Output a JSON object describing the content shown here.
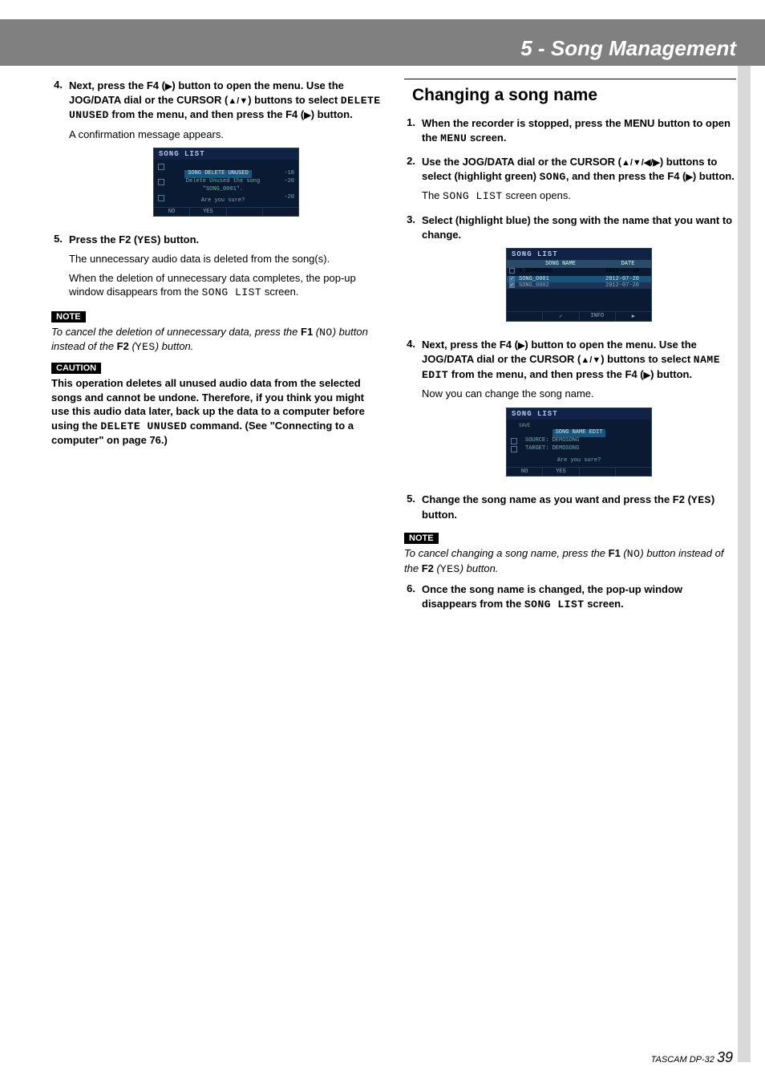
{
  "header": {
    "title": "5 - Song Management"
  },
  "left": {
    "step4": {
      "num": "4.",
      "b1": "Next, press the F4 (",
      "b2": ") button to open the menu. Use the JOG/DATA dial or the CURSOR (",
      "b3": ") buttons to select ",
      "mono": "DELETE UNUSED",
      "b4": " from the menu, and then press the F4 (",
      "b5": ") button.",
      "plain": "A confirmation message appears."
    },
    "lcd1": {
      "title": "SONG LIST",
      "highlight": "SONG DELETE UNUSED",
      "r1": "-18",
      "msg1": "Delete Unused the song",
      "msg2": "\"SONG_0001\".",
      "r2": "-20",
      "r3": "-20",
      "msg3": "Are you sure?",
      "f1": "NO",
      "f2": "YES",
      "f3": "",
      "f4": ""
    },
    "step5": {
      "num": "5.",
      "b1": "Press the F2 (",
      "mono": "YES",
      "b2": ") button.",
      "p1": "The unnecessary audio data is deleted from the song(s).",
      "p2a": "When the deletion of unnecessary data completes, the pop-up window disappears from the ",
      "p2mono": "SONG LIST",
      "p2b": " screen."
    },
    "note": {
      "label": "NOTE",
      "t1": "To cancel the deletion of unnecessary data, press the ",
      "bF1": "F1",
      "t2": " (",
      "mono1": "NO",
      "t3": ") button instead of the ",
      "bF2": "F2",
      "t4": " (",
      "mono2": "YES",
      "t5": ") button."
    },
    "caution": {
      "label": "CAUTION",
      "t1": "This operation deletes all unused audio data from the selected songs and cannot be undone. Therefore, if you think you might use this audio data later, back up the data to a computer before using the ",
      "mono": "DELETE UNUSED",
      "t2": " command. (See \"Connecting to a computer\" on page 76.)"
    }
  },
  "right": {
    "h2": "Changing a song name",
    "step1": {
      "num": "1.",
      "b1": "When the recorder is stopped, press the MENU button to open the ",
      "mono": "MENU",
      "b2": " screen."
    },
    "step2": {
      "num": "2.",
      "b1": "Use the JOG/DATA dial or the CURSOR (",
      "b2": ") buttons to select (highlight green) ",
      "mono": "SONG",
      "b3": ", and then press the F4 (",
      "b4": ") button.",
      "p1a": "The ",
      "p1mono": "SONG LIST",
      "p1b": " screen opens."
    },
    "step3": {
      "num": "3.",
      "b1": "Select (highlight blue) the song with the name that you want to change."
    },
    "lcd2": {
      "title": "SONG LIST",
      "col1": "SONG NAME",
      "col2": "DATE",
      "rows": [
        {
          "chk": "unchecked",
          "dot": true,
          "name": "DEMOSONG",
          "date": "2012-07-18",
          "cls": ""
        },
        {
          "chk": "checked",
          "dot": false,
          "name": "SONG_0001",
          "date": "2012-07-20",
          "cls": "sel"
        },
        {
          "chk": "checked",
          "dot": false,
          "name": "SONG_0002",
          "date": "2012-07-20",
          "cls": "dim"
        }
      ],
      "f1": "",
      "f2": "✓",
      "f3": "INFO",
      "f4": "▶"
    },
    "step4": {
      "num": "4.",
      "b1": "Next, press the F4 (",
      "b2": ") button to open the menu. Use the JOG/DATA dial or the CURSOR (",
      "b3": ") buttons to select ",
      "mono": "NAME EDIT",
      "b4": " from the menu, and then press the F4 (",
      "b5": ") button.",
      "plain": "Now you can change the song name."
    },
    "lcd3": {
      "title": "SONG LIST",
      "sub": "SONG NAME EDIT",
      "l1": "SOURCE: DEMOSONG",
      "l2": "TARGET: DEMOSONG",
      "l3": "Are you sure?",
      "f1": "NO",
      "f2": "YES",
      "f3": "",
      "f4": ""
    },
    "step5": {
      "num": "5.",
      "b1": "Change the song name as you want and press the F2 (",
      "mono": "YES",
      "b2": ") button."
    },
    "note": {
      "label": "NOTE",
      "t1": "To cancel changing a song name, press the ",
      "bF1": "F1",
      "t2": " (",
      "mono1": "NO",
      "t3": ") button instead of the ",
      "bF2": "F2",
      "t4": " (",
      "mono2": "YES",
      "t5": ") button."
    },
    "step6": {
      "num": "6.",
      "b1": "Once the song name is changed, the pop-up window disappears from the ",
      "mono": "SONG LIST",
      "b2": " screen."
    }
  },
  "footer": {
    "model": "TASCAM DP-32",
    "page": "39"
  },
  "glyph": {
    "play": "▶",
    "up": "▲",
    "down": "▼",
    "left": "◀",
    "right": "▶",
    "slash": "/"
  }
}
